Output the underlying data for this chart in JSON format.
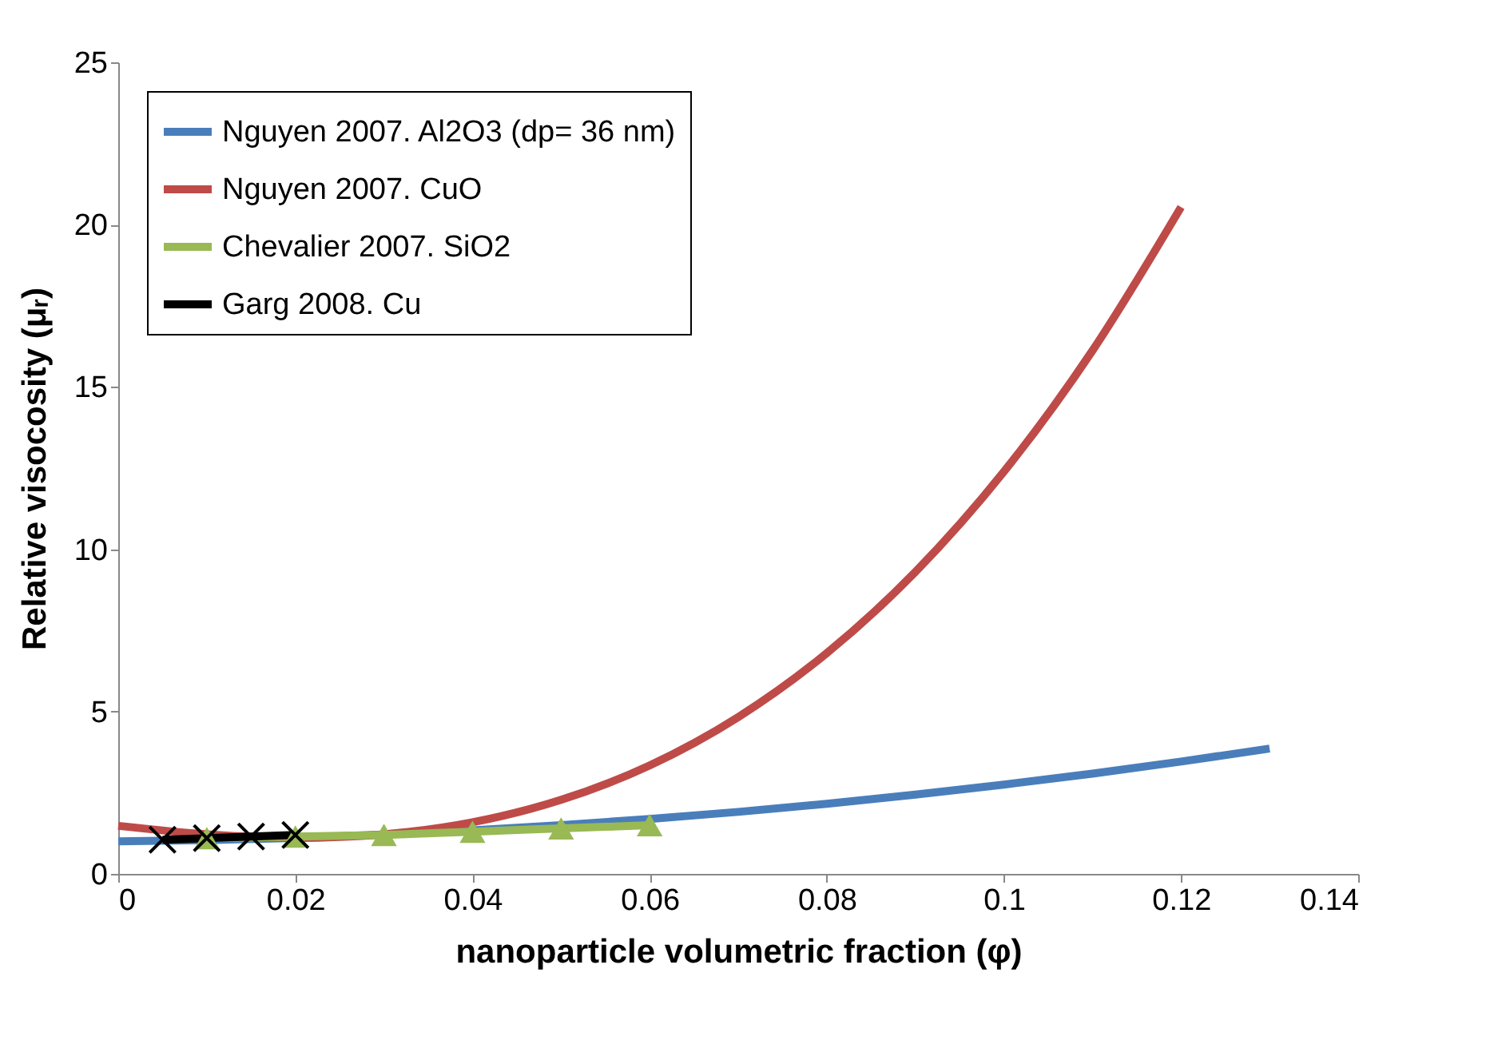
{
  "chart_data": {
    "type": "line",
    "xlabel": "nanoparticle volumetric fraction (φ)",
    "ylabel": "Relative visocosity (μᵣ)",
    "xlim": [
      0,
      0.14
    ],
    "xticks": [
      0,
      0.02,
      0.04,
      0.06,
      0.08,
      0.1,
      0.12,
      0.14
    ],
    "ylim": [
      0,
      25
    ],
    "yticks": [
      0,
      5,
      10,
      15,
      20,
      25
    ],
    "grid": false,
    "legend": "top left",
    "line_style": "solid",
    "series": [
      {
        "name": "Nguyen 2007. Al2O3 (dp= 36 nm)",
        "color": "#4a7ebb",
        "marker": "none",
        "x": [
          0,
          0.01,
          0.02,
          0.03,
          0.04,
          0.05,
          0.06,
          0.07,
          0.08,
          0.09,
          0.1,
          0.11,
          0.12,
          0.13
        ],
        "values": [
          1.0,
          1.04,
          1.11,
          1.21,
          1.34,
          1.5,
          1.69,
          1.91,
          2.16,
          2.44,
          2.75,
          3.09,
          3.46,
          3.86
        ]
      },
      {
        "name": "Nguyen 2007. CuO",
        "color": "#be4b48",
        "marker": "none",
        "x": [
          0,
          0.01,
          0.02,
          0.03,
          0.04,
          0.05,
          0.06,
          0.07,
          0.08,
          0.09,
          0.1,
          0.11,
          0.12
        ],
        "values": [
          1.48,
          1.22,
          1.11,
          1.22,
          1.59,
          2.28,
          3.34,
          4.83,
          6.8,
          9.3,
          12.39,
          16.12,
          20.54
        ]
      },
      {
        "name": "Chevalier 2007. SiO2",
        "color": "#98b954",
        "marker": "triangle",
        "x": [
          0.01,
          0.02,
          0.03,
          0.04,
          0.05,
          0.06
        ],
        "values": [
          1.1,
          1.15,
          1.2,
          1.3,
          1.4,
          1.5
        ]
      },
      {
        "name": "Garg 2008. Cu",
        "color": "#000000",
        "marker": "cross",
        "x": [
          0.005,
          0.01,
          0.015,
          0.02
        ],
        "values": [
          1.05,
          1.1,
          1.15,
          1.2
        ]
      }
    ]
  }
}
